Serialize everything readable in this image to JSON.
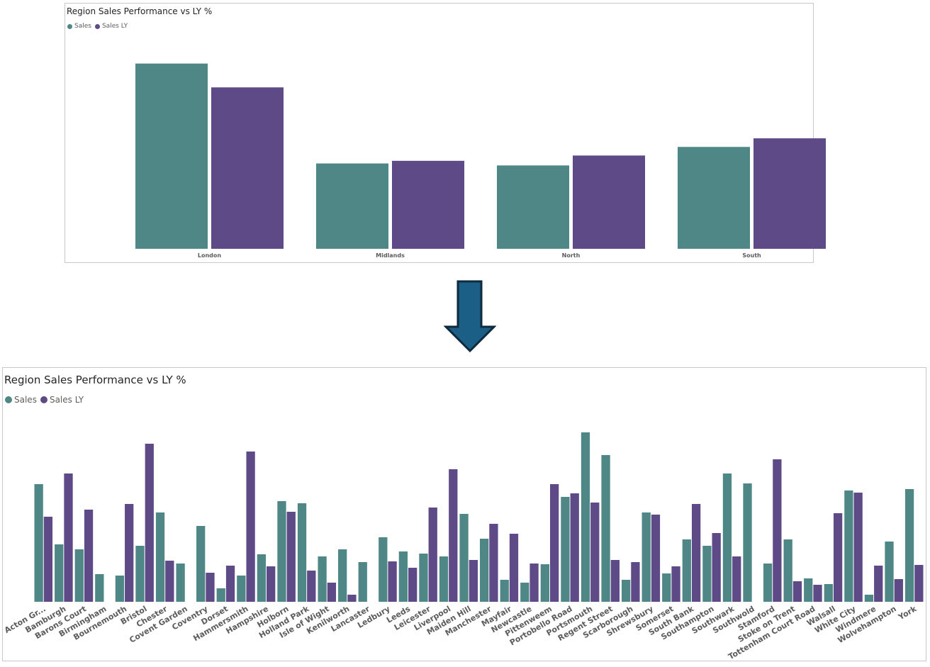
{
  "colors": {
    "sales": "#4e8785",
    "sales_ly": "#5e4a87",
    "arrow_fill": "#1b5f86",
    "arrow_stroke": "#0e2a3c"
  },
  "icons": {
    "arrow": "arrow-down-icon"
  },
  "top_chart": {
    "title": "Region Sales Performance vs LY %",
    "legend": [
      "Sales",
      "Sales LY"
    ]
  },
  "bottom_chart": {
    "title": "Region Sales Performance vs LY %",
    "legend": [
      "Sales",
      "Sales LY"
    ]
  },
  "chart_data": [
    {
      "type": "bar",
      "title": "Region Sales Performance vs LY %",
      "xlabel": "",
      "ylabel": "",
      "categories": [
        "London",
        "Midlands",
        "North",
        "South"
      ],
      "series": [
        {
          "name": "Sales",
          "values": [
            280,
            129,
            126,
            154
          ]
        },
        {
          "name": "Sales LY",
          "values": [
            244,
            133,
            141,
            167
          ]
        }
      ],
      "ylim": [
        0,
        300
      ],
      "grid": false,
      "legend_position": "top-left"
    },
    {
      "type": "bar",
      "title": "Region Sales Performance vs LY %",
      "xlabel": "",
      "ylabel": "",
      "categories": [
        "Acton Gr...",
        "Bamburgh",
        "Barons Court",
        "Birmingham",
        "Bournemouth",
        "Bristol",
        "Chester",
        "Covent Garden",
        "Coventry",
        "Dorset",
        "Hammersmith",
        "Hampshire",
        "Holborn",
        "Holland Park",
        "Isle of Wight",
        "Kenilworth",
        "Lancaster",
        "Ledbury",
        "Leeds",
        "Leicester",
        "Liverpool",
        "Maiden Hill",
        "Manchester",
        "Mayfair",
        "Newcastle",
        "Pittenweem",
        "Portobello Road",
        "Portsmouth",
        "Regent Street",
        "Scarborough",
        "Shrewsbury",
        "Somerset",
        "South Bank",
        "Southampton",
        "Southwark",
        "Southwold",
        "Stamford",
        "Stoke on Trent",
        "Tottenham Court Road",
        "Walsall",
        "White City",
        "Windmere",
        "Wolvehampton",
        "York"
      ],
      "series": [
        {
          "name": "Sales",
          "values": [
            166,
            81,
            74,
            39,
            37,
            79,
            126,
            54,
            107,
            19,
            37,
            67,
            142,
            139,
            64,
            74,
            56,
            91,
            71,
            68,
            64,
            124,
            89,
            31,
            27,
            53,
            148,
            239,
            207,
            31,
            126,
            40,
            88,
            79,
            181,
            167,
            54,
            88,
            33,
            25,
            157,
            10,
            85,
            159
          ]
        },
        {
          "name": "Sales LY",
          "values": [
            120,
            181,
            130,
            0,
            138,
            223,
            58,
            0,
            41,
            51,
            212,
            50,
            127,
            44,
            27,
            10,
            0,
            57,
            48,
            133,
            187,
            59,
            110,
            96,
            54,
            166,
            153,
            140,
            59,
            56,
            123,
            50,
            138,
            97,
            64,
            0,
            201,
            29,
            24,
            125,
            154,
            51,
            32,
            52
          ]
        }
      ],
      "ylim": [
        0,
        240
      ],
      "grid": false,
      "legend_position": "top-left"
    }
  ]
}
